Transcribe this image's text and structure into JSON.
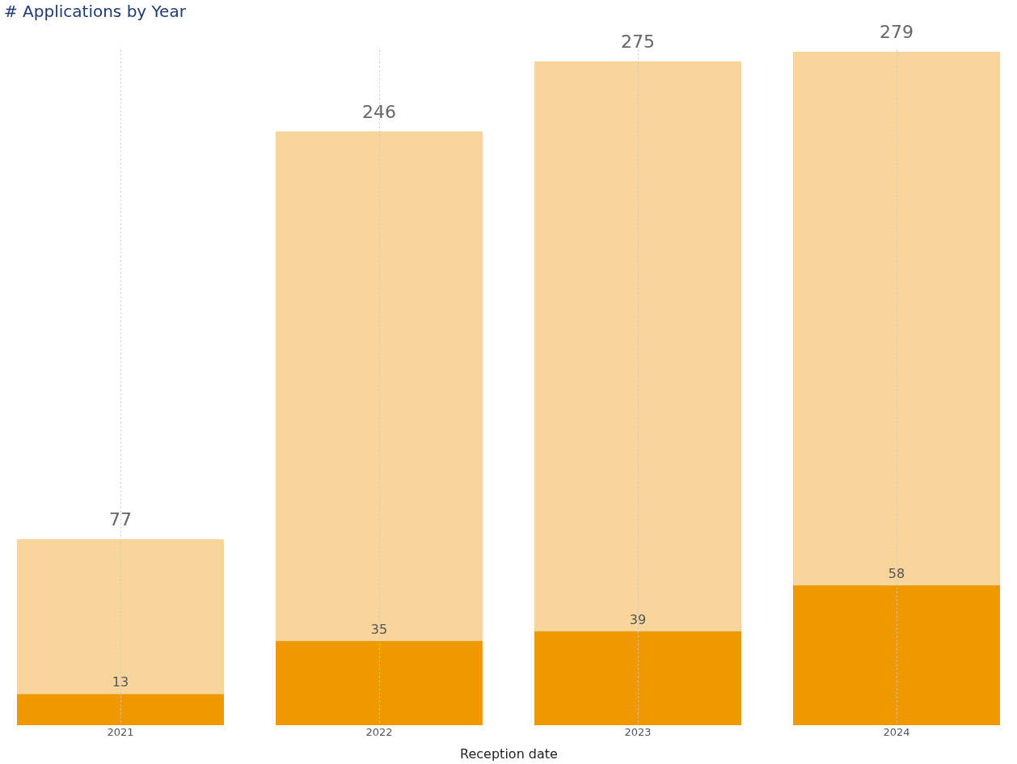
{
  "chart_data": {
    "type": "bar",
    "title": "# Applications by Year",
    "xlabel": "Reception date",
    "categories": [
      "2021",
      "2022",
      "2023",
      "2024"
    ],
    "stacked": true,
    "series": [
      {
        "color": "#ee9900",
        "values": [
          13,
          35,
          39,
          58
        ],
        "value_labels": [
          "13",
          "35",
          "39",
          "58"
        ]
      },
      {
        "color": "#f7d59b",
        "values": [
          64,
          211,
          236,
          221
        ]
      }
    ],
    "totals": [
      "77",
      "246",
      "275",
      "279"
    ],
    "grid": "x"
  }
}
